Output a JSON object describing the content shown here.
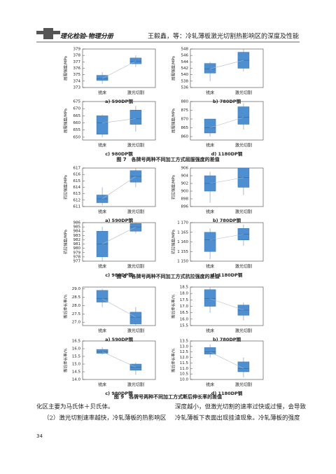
{
  "header": {
    "logo": "理化检验-物理分册",
    "running_title": "王毅鑫，等：冷轧薄板激光切割热影响区的深度及性能"
  },
  "figures": [
    {
      "caption": "图 7　各牌号两种不同加工方式屈服强度的差值",
      "ylabel": "屈服强度/MPa",
      "categories": [
        "铣床",
        "激光切割"
      ],
      "panels": [
        {
          "label": "a) 590DP钢",
          "ylim": [
            373,
            379
          ],
          "yticks": [
            373,
            374,
            375,
            376,
            377,
            378,
            379
          ],
          "boxes": [
            {
              "min": 373.6,
              "q1": 374.1,
              "median": 374.4,
              "q3": 374.9,
              "max": 375.4
            },
            {
              "min": 376.2,
              "q1": 376.7,
              "median": 377.1,
              "q3": 377.6,
              "max": 378
            }
          ]
        },
        {
          "label": "b) 780DP钢",
          "ylim": [
            536,
            548
          ],
          "yticks": [
            536,
            538,
            540,
            542,
            544,
            546,
            548
          ],
          "boxes": [
            {
              "min": 538,
              "q1": 540.5,
              "median": 541.8,
              "q3": 543.5,
              "max": 544
            },
            {
              "min": 541,
              "q1": 542,
              "median": 544.5,
              "q3": 547,
              "max": 548
            }
          ]
        },
        {
          "label": "c) 980DP钢",
          "ylim": [
            648,
            675
          ],
          "yticks": [
            650,
            655,
            660,
            665,
            670,
            675
          ],
          "boxes": [
            {
              "min": 650,
              "q1": 652,
              "median": 660,
              "q3": 665,
              "max": 666
            },
            {
              "min": 654,
              "q1": 659,
              "median": 663,
              "q3": 669,
              "max": 672
            }
          ]
        },
        {
          "label": "d) 1180DP钢",
          "ylim": [
            858,
            880
          ],
          "yticks": [
            860,
            865,
            870,
            875,
            880
          ],
          "boxes": [
            {
              "min": 860,
              "q1": 862,
              "median": 865,
              "q3": 870,
              "max": 870
            },
            {
              "min": 864,
              "q1": 867,
              "median": 871,
              "q3": 877,
              "max": 879
            }
          ]
        }
      ]
    },
    {
      "caption": "图 8　各牌号两种不同加工方式抗拉强度的差值",
      "ylabel": "抗拉强度/MPa",
      "categories": [
        "铣床",
        "激光切割"
      ],
      "panels": [
        {
          "label": "a) 590DP钢",
          "ylim": [
            611,
            617
          ],
          "yticks": [
            611,
            612,
            613,
            614,
            615,
            616,
            617
          ],
          "boxes": [
            {
              "min": 611.2,
              "q1": 611.6,
              "median": 612.2,
              "q3": 612.8,
              "max": 614
            },
            {
              "min": 614,
              "q1": 614.8,
              "median": 615.7,
              "q3": 616.6,
              "max": 617
            }
          ]
        },
        {
          "label": "b) 780DP钢",
          "ylim": [
            896,
            906
          ],
          "yticks": [
            896,
            898,
            900,
            902,
            904,
            906
          ],
          "boxes": [
            {
              "min": 897,
              "q1": 900,
              "median": 902,
              "q3": 904,
              "max": 905
            },
            {
              "min": 899,
              "q1": 901,
              "median": 903.5,
              "q3": 906,
              "max": 906
            }
          ]
        },
        {
          "label": "c) 980DP钢",
          "ylim": [
            977,
            986
          ],
          "yticks": [
            977,
            978,
            979,
            980,
            981,
            982,
            983,
            984,
            985,
            986
          ],
          "boxes": [
            {
              "min": 977,
              "q1": 978,
              "median": 981,
              "q3": 984,
              "max": 985
            },
            {
              "min": 983.5,
              "q1": 984,
              "median": 985,
              "q3": 985.8,
              "max": 986
            }
          ]
        },
        {
          "label": "d) 1180DP钢",
          "ylim": [
            1150,
            1170
          ],
          "yticks": [
            {
              "value": 1150,
              "label": "1 150"
            },
            {
              "value": 1155,
              "label": "1 155"
            },
            {
              "value": 1160,
              "label": "1 160"
            },
            {
              "value": 1165,
              "label": "1 165"
            },
            {
              "value": 1170,
              "label": "1 170"
            }
          ],
          "boxes": [
            {
              "min": 1151,
              "q1": 1155,
              "median": 1161,
              "q3": 1165,
              "max": 1167
            },
            {
              "min": 1158,
              "q1": 1161,
              "median": 1164,
              "q3": 1167,
              "max": 1169
            }
          ]
        }
      ]
    },
    {
      "caption": "图 9　各牌号两种不同加工方式断后伸长率的差值",
      "ylabel": "断后伸长率/%",
      "categories": [
        "铣床",
        "激光切割"
      ],
      "panels": [
        {
          "label": "a) 590DP钢",
          "ylim": [
            26.8,
            29.1
          ],
          "yticks": [
            {
              "value": 27,
              "label": "27.0"
            },
            27.5,
            {
              "value": 28,
              "label": "28.0"
            },
            28.5,
            {
              "value": 29,
              "label": "29.0"
            }
          ],
          "boxes": [
            {
              "min": 27.9,
              "q1": 28.2,
              "median": 28.4,
              "q3": 28.9,
              "max": 29
            },
            {
              "min": 26.8,
              "q1": 26.9,
              "median": 27.3,
              "q3": 27.6,
              "max": 27.9
            }
          ]
        },
        {
          "label": "b) 780DP钢",
          "ylim": [
            15.5,
            18.5
          ],
          "yticks": [
            15.5,
            {
              "value": 16,
              "label": "16.0"
            },
            16.5,
            {
              "value": 17,
              "label": "17.0"
            },
            17.5,
            {
              "value": 18,
              "label": "18.0"
            },
            18.5
          ],
          "boxes": [
            {
              "min": 16.5,
              "q1": 17,
              "median": 17.6,
              "q3": 18.3,
              "max": 18.5
            },
            {
              "min": 15.9,
              "q1": 16.3,
              "median": 16.7,
              "q3": 17.1,
              "max": 17.3
            }
          ]
        },
        {
          "label": "c) 980DP钢",
          "ylim": [
            14,
            16.5
          ],
          "yticks": [
            {
              "value": 14,
              "label": "14.0"
            },
            14.5,
            {
              "value": 15,
              "label": "15.0"
            },
            15.5,
            {
              "value": 16,
              "label": "16.0"
            },
            16.5
          ],
          "boxes": [
            {
              "min": 15.6,
              "q1": 15.7,
              "median": 15.8,
              "q3": 15.95,
              "max": 16.1
            },
            {
              "min": 14.3,
              "q1": 14.6,
              "median": 14.8,
              "q3": 15,
              "max": 15.1
            }
          ]
        },
        {
          "label": "d) 1180DP钢",
          "ylim": [
            10,
            13.5
          ],
          "yticks": [
            {
              "value": 10,
              "label": "10.0"
            },
            10.5,
            {
              "value": 11,
              "label": "11.0"
            },
            11.5,
            {
              "value": 12,
              "label": "12.0"
            },
            12.5,
            {
              "value": 13,
              "label": "13.0"
            },
            13.5
          ],
          "boxes": [
            {
              "min": 12,
              "q1": 12.3,
              "median": 12.5,
              "q3": 12.9,
              "max": 13.2
            },
            {
              "min": 10.2,
              "q1": 10.7,
              "median": 11,
              "q3": 11.6,
              "max": 12
            }
          ]
        }
      ]
    }
  ],
  "body": {
    "left": [
      "化区主要为马氏体＋贝氏体。",
      "（2）激光切割速率越快，冷轧薄板的热影响区"
    ],
    "right": [
      "深度越小，但激光切割的速率过快或过慢，会导致",
      "冷轧薄板下表面出现挂渣现象。冷轧薄板的强度"
    ]
  },
  "page_number": "34"
}
